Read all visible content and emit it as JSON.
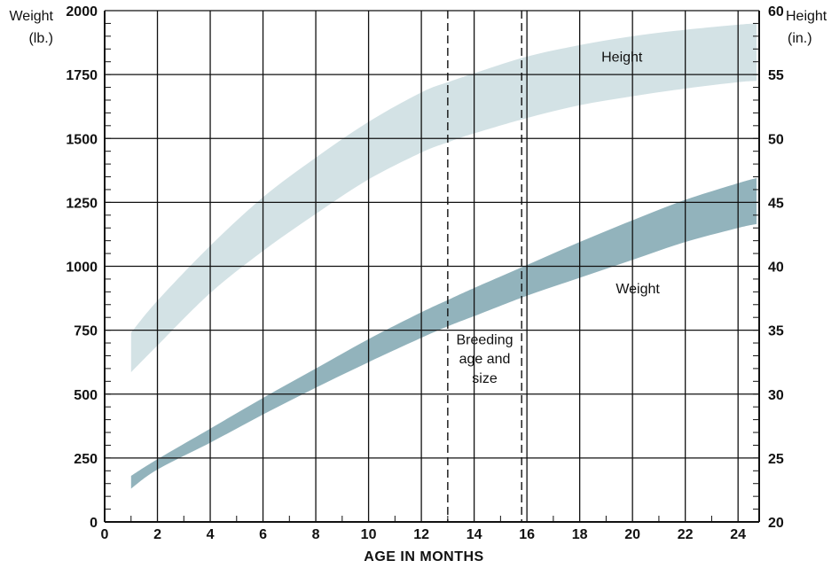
{
  "chart_data": {
    "type": "area",
    "xlabel": "AGE IN MONTHS",
    "xlim": [
      0,
      24.8
    ],
    "x_ticks": [
      0,
      2,
      4,
      6,
      8,
      10,
      12,
      14,
      16,
      18,
      20,
      22,
      24
    ],
    "y_left": {
      "label_line1": "Weight",
      "label_line2": "(lb.)",
      "lim": [
        0,
        2000
      ],
      "ticks": [
        0,
        250,
        500,
        750,
        1000,
        1250,
        1500,
        1750,
        2000
      ]
    },
    "y_right": {
      "label_line1": "Height",
      "label_line2": "(in.)",
      "lim": [
        20,
        60
      ],
      "ticks": [
        20,
        25,
        30,
        35,
        40,
        45,
        50,
        55,
        60
      ]
    },
    "grid": true,
    "series": [
      {
        "name": "Height",
        "axis": "right",
        "color": "#d3e2e5",
        "x": [
          1,
          2,
          4,
          6,
          8,
          10,
          12,
          13,
          14,
          16,
          18,
          20,
          22,
          24,
          24.7
        ],
        "upper": [
          34.8,
          37.3,
          41.6,
          45.4,
          48.5,
          51.3,
          53.6,
          54.4,
          55.1,
          56.4,
          57.3,
          58.0,
          58.5,
          58.9,
          59.0
        ],
        "lower": [
          31.7,
          33.8,
          37.9,
          41.2,
          44.1,
          46.8,
          48.9,
          49.7,
          50.4,
          51.6,
          52.6,
          53.3,
          53.9,
          54.4,
          54.5
        ]
      },
      {
        "name": "Weight",
        "axis": "left",
        "color": "#92b3bc",
        "x": [
          1,
          2,
          4,
          6,
          8,
          10,
          12,
          13,
          14,
          16,
          18,
          20,
          22,
          24,
          24.7
        ],
        "upper": [
          180,
          245,
          365,
          485,
          600,
          715,
          820,
          868,
          915,
          1005,
          1095,
          1180,
          1260,
          1325,
          1345
        ],
        "lower": [
          130,
          205,
          310,
          420,
          525,
          625,
          720,
          765,
          805,
          885,
          955,
          1025,
          1095,
          1150,
          1165
        ]
      }
    ],
    "annotations": [
      {
        "id": "height-label",
        "text": "Height",
        "x": 19.6,
        "y": 1800
      },
      {
        "id": "weight-label",
        "text": "Weight",
        "x": 20.2,
        "y": 895
      },
      {
        "id": "breeding-line1",
        "text": "Breeding",
        "x": 14.4,
        "y": 695
      },
      {
        "id": "breeding-line2",
        "text": "age and",
        "x": 14.4,
        "y": 620
      },
      {
        "id": "breeding-line3",
        "text": "size",
        "x": 14.4,
        "y": 545
      }
    ],
    "dashed_lines_x": [
      13,
      15.8
    ]
  }
}
